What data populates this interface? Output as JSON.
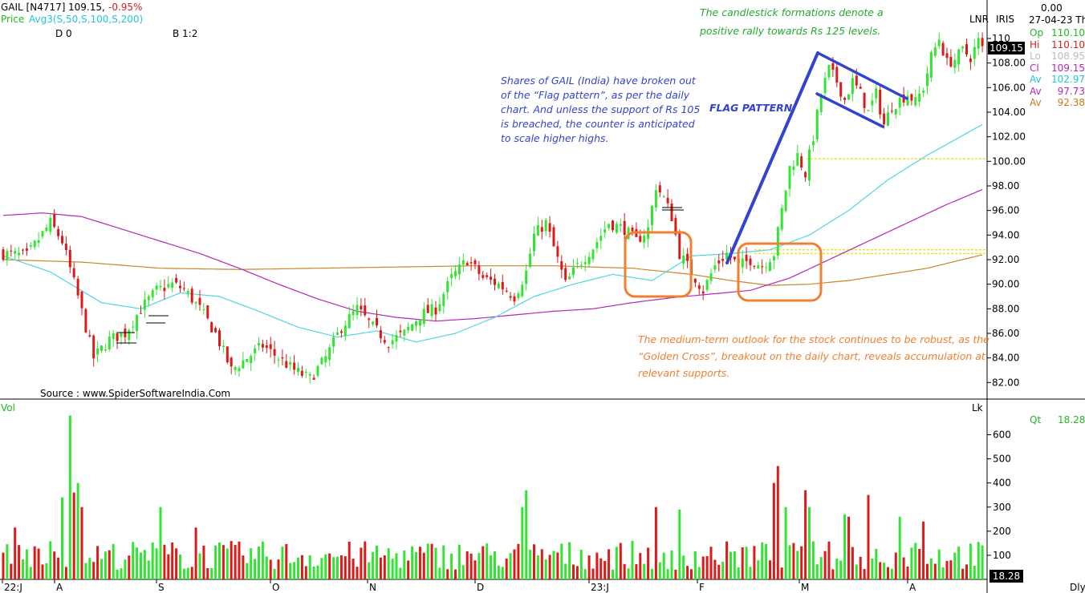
{
  "header": {
    "symbol": "GAIL [N4717]",
    "last_price": "109.15,",
    "change": "-0.95%",
    "price_label": "Price",
    "avg_label": "Avg3(S,50,S,100,S,200)",
    "d_label": "D 0",
    "b_label": "B 1:2",
    "lnr": "LNR",
    "iris": "IRIS",
    "zero_value": "0.00",
    "date": "27-04-23 Th",
    "price_tag": "109.15",
    "vol_label": "Vol",
    "lk_label": "Lk",
    "vol_tag": "18.28",
    "period": "Dly"
  },
  "ohlc_panel": [
    {
      "label": "Op",
      "value": "110.10",
      "color": "#22b722"
    },
    {
      "label": "Hi",
      "value": "110.10",
      "color": "#d21f1f"
    },
    {
      "label": "Lo",
      "value": "108.95",
      "color": "#bdbdbd"
    },
    {
      "label": "Cl",
      "value": "109.15",
      "color": "#b42ab4"
    },
    {
      "label": "Av",
      "value": "102.97",
      "color": "#22c4d6"
    },
    {
      "label": "Av",
      "value": "97.73",
      "color": "#b42ab4"
    },
    {
      "label": "Av",
      "value": "92.38",
      "color": "#c87a1c"
    }
  ],
  "qt": {
    "label": "Qt",
    "value": "18.28"
  },
  "annotations": {
    "green_note": [
      "The candlestick formations denote a",
      "positive rally towards Rs 125 levels."
    ],
    "blue_note": [
      "Shares of GAIL (India) have broken out",
      "of the “Flag pattern”, as per the daily",
      "chart. And unless the support of Rs 105",
      "is breached, the counter is anticipated",
      "to scale higher highs."
    ],
    "flag_label": "FLAG PATTERN",
    "orange_note": [
      "The medium-term outlook for the stock continues to be robust, as the",
      "“Golden Cross”, breakout on the daily chart, reveals accumulation at",
      "relevant supports."
    ],
    "source": "Source : www.SpiderSoftwareIndia.Com"
  },
  "colors": {
    "up": "#33e533",
    "down": "#dd1a1a",
    "ma50": "#4fd6e0",
    "ma100": "#b42ab4",
    "ma200": "#c8862a",
    "annotation_blue": "#3344cc",
    "annotation_orange": "#f07f30",
    "annotation_green": "#22aa33"
  },
  "chart_data": [
    {
      "type": "candlestick",
      "ylim": [
        80,
        111
      ],
      "yticks": [
        82,
        84,
        86,
        88,
        90,
        92,
        94,
        96,
        98,
        100,
        102,
        104,
        106,
        108,
        110
      ],
      "ytick_labels": [
        "82.00",
        "84.00",
        "86.00",
        "88.00",
        "90.00",
        "92.00",
        "94.00",
        "96.00",
        "98.00",
        "100.00",
        "102.00",
        "104.00",
        "106.00",
        "108.00",
        "110"
      ],
      "x_labels": [
        "22:J",
        "A",
        "S",
        "O",
        "N",
        "D",
        "23:J",
        "F",
        "M",
        "A"
      ],
      "close_anchors": [
        {
          "i": 0,
          "v": 92.5
        },
        {
          "i": 6,
          "v": 92.3
        },
        {
          "i": 12,
          "v": 95.0
        },
        {
          "i": 15,
          "v": 93.5
        },
        {
          "i": 19,
          "v": 89.0
        },
        {
          "i": 23,
          "v": 84.0
        },
        {
          "i": 27,
          "v": 85.5
        },
        {
          "i": 31,
          "v": 86.0
        },
        {
          "i": 35,
          "v": 88.0
        },
        {
          "i": 39,
          "v": 89.5
        },
        {
          "i": 43,
          "v": 90.0
        },
        {
          "i": 46,
          "v": 89.6
        },
        {
          "i": 50,
          "v": 88.0
        },
        {
          "i": 54,
          "v": 86.0
        },
        {
          "i": 58,
          "v": 83.0
        },
        {
          "i": 62,
          "v": 84.0
        },
        {
          "i": 66,
          "v": 85.0
        },
        {
          "i": 70,
          "v": 84.0
        },
        {
          "i": 74,
          "v": 83.0
        },
        {
          "i": 78,
          "v": 82.3
        },
        {
          "i": 82,
          "v": 84.0
        },
        {
          "i": 86,
          "v": 86.5
        },
        {
          "i": 90,
          "v": 88.0
        },
        {
          "i": 94,
          "v": 86.5
        },
        {
          "i": 98,
          "v": 85.3
        },
        {
          "i": 102,
          "v": 86.0
        },
        {
          "i": 106,
          "v": 87.5
        },
        {
          "i": 110,
          "v": 88.0
        },
        {
          "i": 114,
          "v": 90.5
        },
        {
          "i": 118,
          "v": 92.0
        },
        {
          "i": 122,
          "v": 90.5
        },
        {
          "i": 126,
          "v": 90.0
        },
        {
          "i": 130,
          "v": 89.0
        },
        {
          "i": 133,
          "v": 91.0
        },
        {
          "i": 135,
          "v": 94.0
        },
        {
          "i": 138,
          "v": 95.0
        },
        {
          "i": 140,
          "v": 93.0
        },
        {
          "i": 143,
          "v": 90.0
        },
        {
          "i": 146,
          "v": 91.5
        },
        {
          "i": 150,
          "v": 93.0
        },
        {
          "i": 154,
          "v": 95.0
        },
        {
          "i": 158,
          "v": 94.5
        },
        {
          "i": 161,
          "v": 93.5
        },
        {
          "i": 164,
          "v": 94.5
        },
        {
          "i": 166,
          "v": 98.0
        },
        {
          "i": 168,
          "v": 97.0
        },
        {
          "i": 170,
          "v": 95.5
        },
        {
          "i": 172,
          "v": 92.5
        },
        {
          "i": 175,
          "v": 91.0
        },
        {
          "i": 178,
          "v": 89.5
        },
        {
          "i": 181,
          "v": 91.5
        },
        {
          "i": 184,
          "v": 92.5
        },
        {
          "i": 187,
          "v": 91.5
        },
        {
          "i": 190,
          "v": 92.0
        },
        {
          "i": 193,
          "v": 91.5
        },
        {
          "i": 196,
          "v": 92.5
        },
        {
          "i": 198,
          "v": 96.0
        },
        {
          "i": 200,
          "v": 99.5
        },
        {
          "i": 202,
          "v": 100.5
        },
        {
          "i": 204,
          "v": 99.0
        },
        {
          "i": 206,
          "v": 102.0
        },
        {
          "i": 208,
          "v": 105.5
        },
        {
          "i": 210,
          "v": 107.5
        },
        {
          "i": 212,
          "v": 106.5
        },
        {
          "i": 214,
          "v": 105.0
        },
        {
          "i": 216,
          "v": 106.5
        },
        {
          "i": 218,
          "v": 105.5
        },
        {
          "i": 220,
          "v": 104.0
        },
        {
          "i": 222,
          "v": 105.5
        },
        {
          "i": 224,
          "v": 103.0
        },
        {
          "i": 226,
          "v": 104.5
        },
        {
          "i": 228,
          "v": 105.0
        },
        {
          "i": 230,
          "v": 105.5
        },
        {
          "i": 232,
          "v": 104.8
        },
        {
          "i": 234,
          "v": 106.0
        },
        {
          "i": 236,
          "v": 108.5
        },
        {
          "i": 238,
          "v": 110.0
        },
        {
          "i": 240,
          "v": 108.0
        },
        {
          "i": 242,
          "v": 108.3
        },
        {
          "i": 244,
          "v": 109.0
        },
        {
          "i": 246,
          "v": 108.5
        },
        {
          "i": 248,
          "v": 109.8
        },
        {
          "i": 249,
          "v": 109.15
        }
      ],
      "ma50_anchors": [
        {
          "i": 0,
          "v": 92.3
        },
        {
          "i": 12,
          "v": 91.0
        },
        {
          "i": 25,
          "v": 88.5
        },
        {
          "i": 35,
          "v": 88.0
        },
        {
          "i": 45,
          "v": 89.3
        },
        {
          "i": 55,
          "v": 89.0
        },
        {
          "i": 65,
          "v": 87.8
        },
        {
          "i": 75,
          "v": 86.5
        },
        {
          "i": 85,
          "v": 85.7
        },
        {
          "i": 95,
          "v": 86.2
        },
        {
          "i": 105,
          "v": 85.3
        },
        {
          "i": 115,
          "v": 86.0
        },
        {
          "i": 125,
          "v": 87.3
        },
        {
          "i": 135,
          "v": 89.0
        },
        {
          "i": 145,
          "v": 90.0
        },
        {
          "i": 155,
          "v": 90.8
        },
        {
          "i": 165,
          "v": 90.3
        },
        {
          "i": 175,
          "v": 92.3
        },
        {
          "i": 185,
          "v": 92.5
        },
        {
          "i": 195,
          "v": 92.8
        },
        {
          "i": 205,
          "v": 94.0
        },
        {
          "i": 215,
          "v": 96.0
        },
        {
          "i": 225,
          "v": 98.5
        },
        {
          "i": 235,
          "v": 100.5
        },
        {
          "i": 249,
          "v": 103.0
        }
      ],
      "ma100_anchors": [
        {
          "i": 0,
          "v": 95.6
        },
        {
          "i": 10,
          "v": 95.8
        },
        {
          "i": 20,
          "v": 95.5
        },
        {
          "i": 30,
          "v": 94.5
        },
        {
          "i": 40,
          "v": 93.5
        },
        {
          "i": 50,
          "v": 92.5
        },
        {
          "i": 60,
          "v": 91.3
        },
        {
          "i": 70,
          "v": 90.0
        },
        {
          "i": 80,
          "v": 88.8
        },
        {
          "i": 90,
          "v": 87.8
        },
        {
          "i": 100,
          "v": 87.3
        },
        {
          "i": 110,
          "v": 87.0
        },
        {
          "i": 120,
          "v": 87.2
        },
        {
          "i": 130,
          "v": 87.5
        },
        {
          "i": 140,
          "v": 87.8
        },
        {
          "i": 150,
          "v": 88.0
        },
        {
          "i": 160,
          "v": 88.5
        },
        {
          "i": 170,
          "v": 88.9
        },
        {
          "i": 180,
          "v": 89.2
        },
        {
          "i": 190,
          "v": 89.5
        },
        {
          "i": 200,
          "v": 90.5
        },
        {
          "i": 210,
          "v": 92.0
        },
        {
          "i": 220,
          "v": 93.5
        },
        {
          "i": 230,
          "v": 95.0
        },
        {
          "i": 240,
          "v": 96.5
        },
        {
          "i": 249,
          "v": 97.7
        }
      ],
      "ma200_anchors": [
        {
          "i": 0,
          "v": 92.0
        },
        {
          "i": 20,
          "v": 91.8
        },
        {
          "i": 40,
          "v": 91.3
        },
        {
          "i": 60,
          "v": 91.2
        },
        {
          "i": 80,
          "v": 91.3
        },
        {
          "i": 100,
          "v": 91.4
        },
        {
          "i": 120,
          "v": 91.5
        },
        {
          "i": 140,
          "v": 91.5
        },
        {
          "i": 160,
          "v": 91.3
        },
        {
          "i": 175,
          "v": 90.8
        },
        {
          "i": 185,
          "v": 90.3
        },
        {
          "i": 195,
          "v": 89.9
        },
        {
          "i": 205,
          "v": 90.0
        },
        {
          "i": 215,
          "v": 90.3
        },
        {
          "i": 225,
          "v": 90.8
        },
        {
          "i": 235,
          "v": 91.3
        },
        {
          "i": 249,
          "v": 92.4
        }
      ]
    },
    {
      "type": "bar",
      "name": "Vol",
      "ylim": [
        0,
        720
      ],
      "yticks": [
        100,
        200,
        300,
        400,
        500,
        600
      ],
      "ytick_labels": [
        "100",
        "200",
        "300",
        "400",
        "500",
        "600"
      ],
      "spikes": [
        {
          "i": 17,
          "v": 680
        },
        {
          "i": 19,
          "v": 400
        },
        {
          "i": 15,
          "v": 340
        },
        {
          "i": 18,
          "v": 360
        },
        {
          "i": 20,
          "v": 300
        },
        {
          "i": 3,
          "v": 215
        },
        {
          "i": 40,
          "v": 300
        },
        {
          "i": 49,
          "v": 215
        },
        {
          "i": 133,
          "v": 370
        },
        {
          "i": 132,
          "v": 300
        },
        {
          "i": 166,
          "v": 300
        },
        {
          "i": 172,
          "v": 290
        },
        {
          "i": 197,
          "v": 470
        },
        {
          "i": 196,
          "v": 400
        },
        {
          "i": 199,
          "v": 300
        },
        {
          "i": 204,
          "v": 370
        },
        {
          "i": 205,
          "v": 300
        },
        {
          "i": 214,
          "v": 270
        },
        {
          "i": 215,
          "v": 260
        },
        {
          "i": 220,
          "v": 350
        },
        {
          "i": 228,
          "v": 260
        },
        {
          "i": 234,
          "v": 240
        }
      ]
    }
  ]
}
